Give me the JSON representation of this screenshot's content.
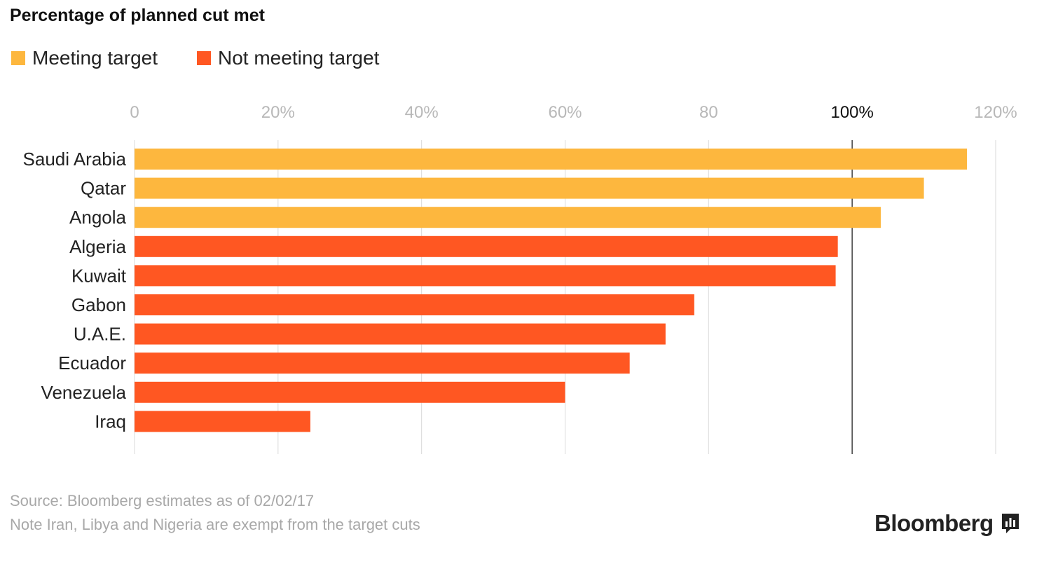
{
  "title": "Percentage of planned cut met",
  "legend": [
    {
      "label": "Meeting target",
      "color": "#fdb73e"
    },
    {
      "label": "Not meeting target",
      "color": "#ff5722"
    }
  ],
  "footer": {
    "source": "Source: Bloomberg estimates as of 02/02/17",
    "note": "Note Iran, Libya and Nigeria are exempt from the target cuts"
  },
  "logo": {
    "text": "Bloomberg",
    "icon": "bloomberg-chart-icon"
  },
  "chart_data": {
    "type": "bar",
    "orientation": "horizontal",
    "title": "Percentage of planned cut met",
    "categories": [
      "Saudi Arabia",
      "Qatar",
      "Angola",
      "Algeria",
      "Kuwait",
      "Gabon",
      "U.A.E.",
      "Ecuador",
      "Venezuela",
      "Iraq"
    ],
    "values": [
      116,
      110,
      104,
      98,
      97.7,
      78,
      74,
      69,
      60,
      24.5
    ],
    "groups": [
      "Meeting target",
      "Meeting target",
      "Meeting target",
      "Not meeting target",
      "Not meeting target",
      "Not meeting target",
      "Not meeting target",
      "Not meeting target",
      "Not meeting target",
      "Not meeting target"
    ],
    "xlim": [
      0,
      120
    ],
    "ticks": [
      0,
      20,
      40,
      60,
      80,
      100,
      120
    ],
    "tick_labels": [
      "0",
      "20%",
      "40%",
      "60%",
      "80",
      "100%",
      "120%"
    ],
    "highlight_tick": 100,
    "grid": true,
    "xlabel": "",
    "ylabel": ""
  }
}
